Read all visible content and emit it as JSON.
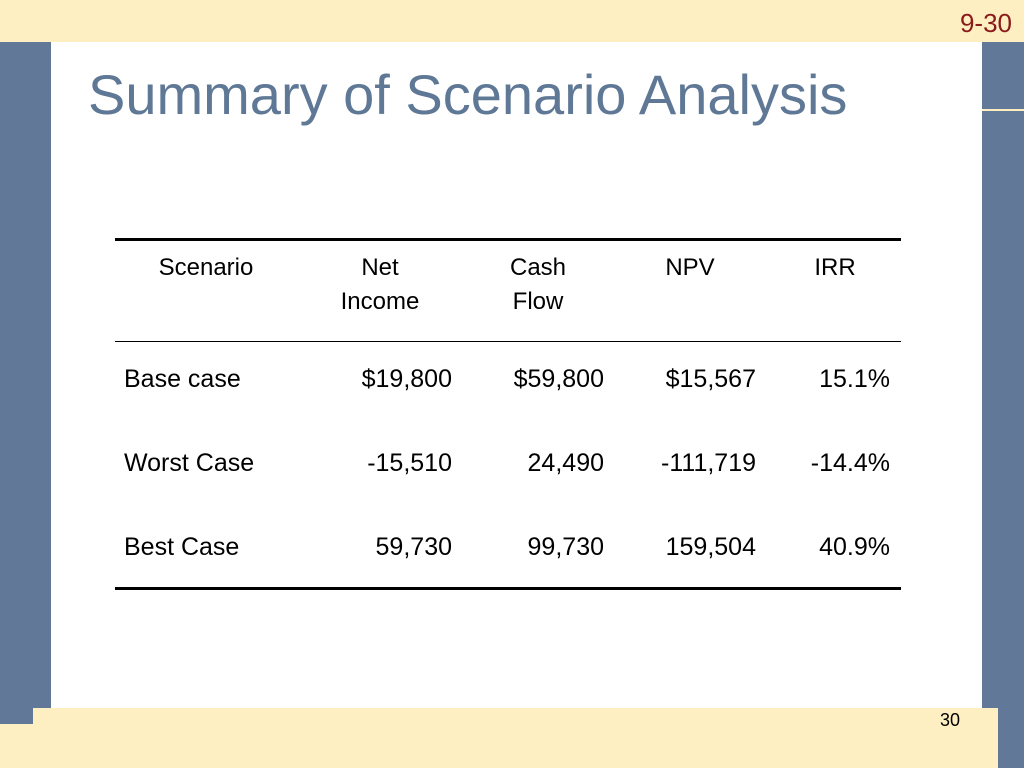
{
  "slide": {
    "code": "9-30",
    "title": "Summary of Scenario Analysis",
    "page_number": "30"
  },
  "table": {
    "headers": {
      "scenario": "Scenario",
      "net_income_1": "Net",
      "net_income_2": "Income",
      "cash_flow_1": "Cash",
      "cash_flow_2": "Flow",
      "npv": "NPV",
      "irr": "IRR"
    },
    "rows": [
      {
        "scenario": "Base case",
        "net_income": "$19,800",
        "cash_flow": "$59,800",
        "npv": "$15,567",
        "irr": "15.1%"
      },
      {
        "scenario": "Worst Case",
        "net_income": "-15,510",
        "cash_flow": "24,490",
        "npv": "-111,719",
        "irr": "-14.4%"
      },
      {
        "scenario": "Best Case",
        "net_income": "59,730",
        "cash_flow": "99,730",
        "npv": "159,504",
        "irr": "40.9%"
      }
    ]
  },
  "colors": {
    "background_band": "#fdefc2",
    "side_blue": "#617899",
    "title_blue": "#5f7896",
    "slide_code_red": "#8b1a1a"
  }
}
